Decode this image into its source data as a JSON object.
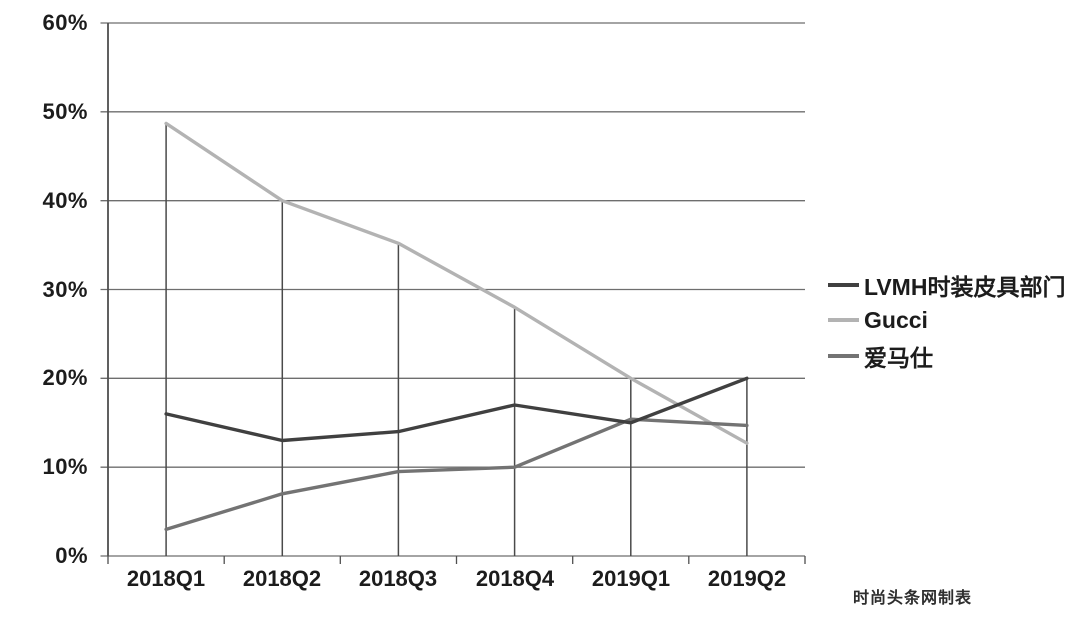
{
  "chart_data": {
    "type": "line",
    "title": "",
    "xlabel": "",
    "ylabel": "",
    "categories": [
      "2018Q1",
      "2018Q2",
      "2018Q3",
      "2018Q4",
      "2019Q1",
      "2019Q2"
    ],
    "series": [
      {
        "name": "LVMH时装皮具部门",
        "color": "#404040",
        "values": [
          16,
          13,
          14,
          17,
          15,
          20
        ]
      },
      {
        "name": "Gucci",
        "color": "#b3b3b3",
        "values": [
          48.7,
          40,
          35.2,
          28,
          20,
          12.7
        ]
      },
      {
        "name": "爱马仕",
        "color": "#737373",
        "values": [
          3,
          7,
          9.5,
          10,
          15.4,
          14.7
        ]
      }
    ],
    "draw_order": [
      1,
      2,
      0
    ],
    "ylim": [
      0,
      60
    ],
    "ytick_step": 10,
    "y_tick_labels": [
      "60%",
      "50%",
      "40%",
      "30%",
      "20%",
      "10%",
      "0%"
    ],
    "grid": "horizontal",
    "drop_lines": true,
    "legend_position": "right",
    "grid_color": "#6e6e6e",
    "axis_color": "#4f4f4f",
    "dropline_color": "#4a4a4a"
  },
  "credit": "时尚头条网制表"
}
